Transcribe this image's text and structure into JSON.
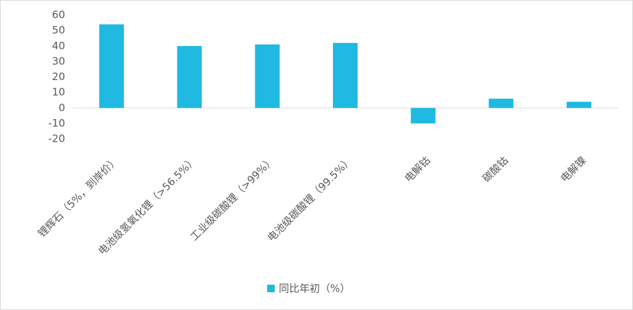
{
  "chart_data": {
    "type": "bar",
    "categories": [
      "锂辉石（5%，到岸价）",
      "电池级氢氧化锂（>56.5%）",
      "工业级碳酸锂（>99%）",
      "电池级碳酸锂（99.5%）",
      "电解钴",
      "碳酸钴",
      "电解镍"
    ],
    "series": [
      {
        "name": "同比年初（%）",
        "color": "#1fb9e1",
        "values": [
          54,
          40,
          41,
          42,
          -10,
          6,
          4
        ]
      }
    ],
    "ylim": [
      -20,
      60
    ],
    "yticks": [
      -20,
      -10,
      0,
      10,
      20,
      30,
      40,
      50,
      60
    ],
    "grid": false,
    "legend": "bottom"
  }
}
